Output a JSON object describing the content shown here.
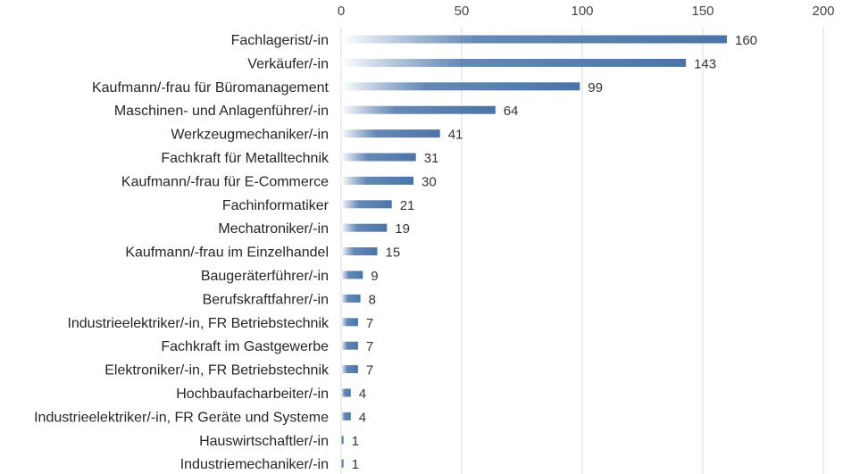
{
  "chart_data": {
    "type": "bar",
    "orientation": "horizontal",
    "categories": [
      "Fachlagerist/-in",
      "Verkäufer/-in",
      "Kaufmann/-frau für Büromanagement",
      "Maschinen- und Anlagenführer/-in",
      "Werkzeugmechaniker/-in",
      "Fachkraft für Metalltechnik",
      "Kaufmann/-frau für E-Commerce",
      "Fachinformatiker",
      "Mechatroniker/-in",
      "Kaufmann/-frau im Einzelhandel",
      "Baugeräterführer/-in",
      "Berufskraftfahrer/-in",
      "Industrieelektriker/-in, FR Betriebstechnik",
      "Fachkraft im Gastgewerbe",
      "Elektroniker/-in, FR Betriebstechnik",
      "Hochbaufacharbeiter/-in",
      "Industrieelektriker/-in, FR Geräte und Systeme",
      "Hauswirtschaftler/-in",
      "Industriemechaniker/-in"
    ],
    "values": [
      160,
      143,
      99,
      64,
      41,
      31,
      30,
      21,
      19,
      15,
      9,
      8,
      7,
      7,
      7,
      4,
      4,
      1,
      1
    ],
    "value_labels": [
      "160",
      "143",
      "99",
      "64",
      "41",
      "31",
      "30",
      "21",
      "19",
      "15",
      "9",
      "8",
      "7",
      "7",
      "7",
      "4",
      "4",
      "1",
      "1"
    ],
    "xlim": [
      0,
      200
    ],
    "x_ticks": [
      0,
      50,
      100,
      150,
      200
    ],
    "x_tick_labels": [
      "0",
      "50",
      "100",
      "150",
      "200"
    ],
    "axis_position": "top",
    "grid": true,
    "legend": false,
    "title": "",
    "xlabel": "",
    "ylabel": "",
    "bar_color": "#4a74a8",
    "bar_color_fade": "#ffffff",
    "grid_color": "#d9d9d9"
  }
}
